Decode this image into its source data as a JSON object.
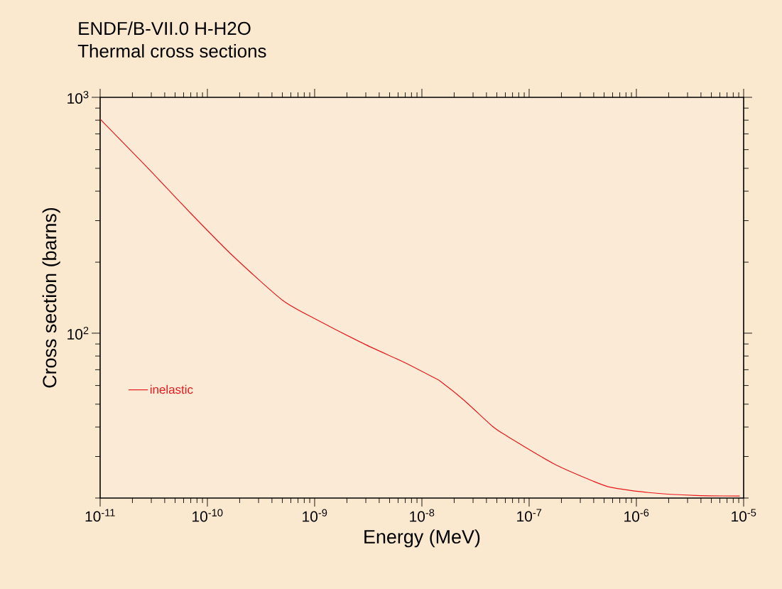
{
  "chart_data": {
    "type": "line",
    "title": "ENDF/B-VII.0 H-H2O",
    "subtitle": "Thermal cross sections",
    "xlabel": "Energy (MeV)",
    "ylabel": "Cross section (barns)",
    "log": "xy",
    "xlim": [
      1e-11,
      1e-05
    ],
    "ylim": [
      20,
      1000
    ],
    "xticks": [
      {
        "value": 1e-11,
        "label": "10$^{-11}$"
      },
      {
        "value": 1e-10,
        "label": "10$^{-10}$"
      },
      {
        "value": 1e-09,
        "label": "10$^{-9}$"
      },
      {
        "value": 1e-08,
        "label": "10$^{-8}$"
      },
      {
        "value": 1e-07,
        "label": "10$^{-7}$"
      },
      {
        "value": 1e-06,
        "label": "10$^{-6}$"
      },
      {
        "value": 1e-05,
        "label": "10$^{-5}$"
      }
    ],
    "yticks": [
      {
        "value": 100,
        "label": "10$^{2}$"
      },
      {
        "value": 1000,
        "label": "10$^{3}$"
      }
    ],
    "legend": "left",
    "grid": false,
    "marker": "none",
    "line_style": "solid",
    "series": [
      {
        "name": "inelastic",
        "color": "#e8171b",
        "x": [
          1e-11,
          2.72e-11,
          6.92e-11,
          1.76e-10,
          5.01e-10,
          1.01e-09,
          2.9e-09,
          6.95e-09,
          1.28e-08,
          1.49e-08,
          2.47e-08,
          4.55e-08,
          6.17e-08,
          1.71e-07,
          3.85e-07,
          5.78e-07,
          1.3e-06,
          3.6e-06,
          9.2e-06
        ],
        "values": [
          808,
          507,
          324,
          211,
          138,
          115,
          90,
          75,
          65,
          62.5,
          52,
          40.3,
          36.7,
          27.9,
          23.7,
          22.2,
          21.1,
          20.5,
          20.4
        ]
      }
    ]
  }
}
